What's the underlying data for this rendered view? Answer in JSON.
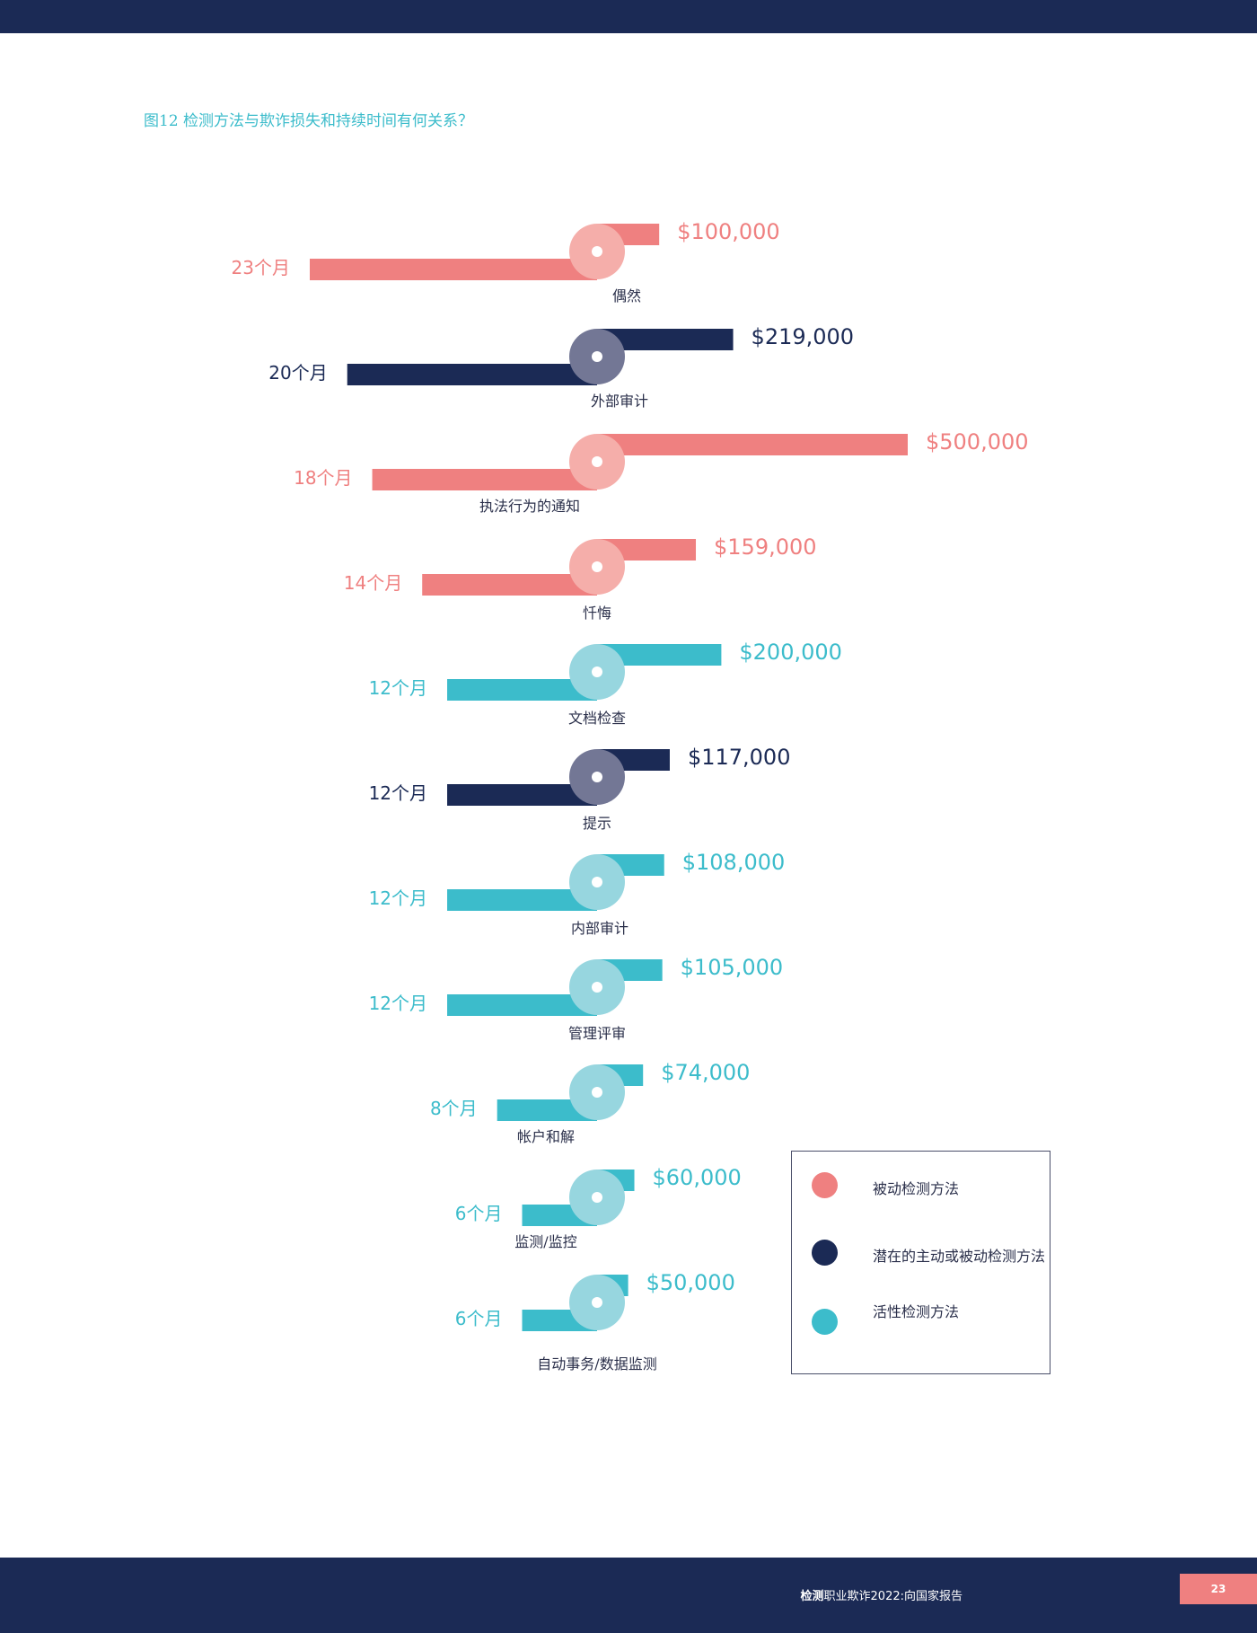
{
  "header": {
    "figure_title": "图12 检测方法与欺诈损失和持续时间有何关系？"
  },
  "chart_data": {
    "type": "bar",
    "title": "图12 检测方法与欺诈损失和持续时间有何关系？",
    "categories": [
      "偶然",
      "外部审计",
      "执法行为的通知",
      "忏悔",
      "文档检查",
      "提示",
      "内部审计",
      "管理评审",
      "帐户和解",
      "监测/监控",
      "自动事务/数据监测"
    ],
    "series": [
      {
        "values": [
          100000,
          219000,
          500000,
          159000,
          200000,
          117000,
          108000,
          105000,
          74000,
          60000,
          50000
        ]
      },
      {
        "values": [
          23,
          20,
          18,
          14,
          12,
          12,
          12,
          12,
          8,
          6,
          6
        ]
      }
    ],
    "loss_labels": [
      "$100,000",
      "$219,000",
      "$500,000",
      "$159,000",
      "$200,000",
      "$117,000",
      "$108,000",
      "$105,000",
      "$74,000",
      "$60,000",
      "$50,000"
    ],
    "duration_labels": [
      "23个月",
      "20个月",
      "18个月",
      "14个月",
      "12个月",
      "12个月",
      "12个月",
      "12个月",
      "8个月",
      "6个月",
      "6个月"
    ],
    "method_type": [
      "passive",
      "potential",
      "passive",
      "passive",
      "active",
      "potential",
      "active",
      "active",
      "active",
      "active",
      "active"
    ],
    "legend": [
      {
        "key": "passive",
        "label": "被动检测方法",
        "color": "#ef8080"
      },
      {
        "key": "potential",
        "label": "潜在的主动或被动检测方法",
        "color": "#1b2a55"
      },
      {
        "key": "active",
        "label": "活性检测方法",
        "color": "#3cbccb"
      }
    ],
    "colors": {
      "passive": {
        "bar": "#ef8080",
        "circle": "#f5aeaa",
        "label": "#ef8080"
      },
      "potential": {
        "bar": "#1b2a55",
        "circle": "#737795",
        "label": "#1b2a55"
      },
      "active": {
        "bar": "#3cbccb",
        "circle": "#97d6df",
        "label": "#3cbccb"
      }
    }
  },
  "footer": {
    "text_bold": "检测",
    "text_rest": "职业欺诈2022:向国家报告",
    "page_number": "23"
  }
}
